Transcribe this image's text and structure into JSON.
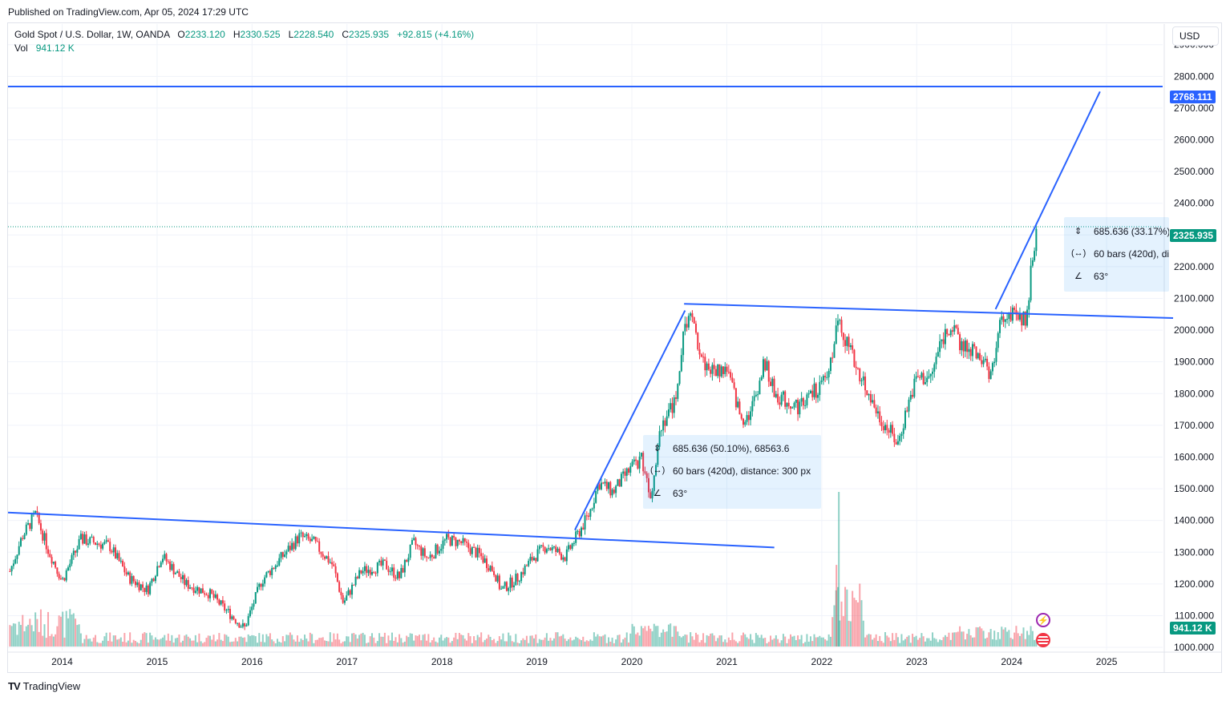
{
  "published": "Published on TradingView.com, Apr 05, 2024 17:29 UTC",
  "legend": {
    "symbol": "Gold Spot / U.S. Dollar, 1W, OANDA",
    "o_label": "O",
    "o_value": "2233.120",
    "h_label": "H",
    "h_value": "2330.525",
    "l_label": "L",
    "l_value": "2228.540",
    "c_label": "C",
    "c_value": "2325.935",
    "change": "+92.815 (+4.16%)",
    "vol_label": "Vol",
    "vol_value": "941.12 K"
  },
  "currency_button": "USD",
  "price_tags": {
    "horizontal_line": "2768.111",
    "last_price": "2325.935",
    "volume": "941.12 K"
  },
  "measure_small": {
    "price_text": "685.636 (50.10%), 68563.6",
    "bars_text": "60 bars (420d), distance: 300 px",
    "angle_text": "63°"
  },
  "measure_large": {
    "price_text": "685.636 (33.17%),",
    "bars_text": "60 bars (420d), di",
    "angle_text": "63°"
  },
  "brand": "TradingView",
  "colors": {
    "up": "#089981",
    "down": "#f23645",
    "trendline": "#2962ff",
    "grid": "#f0f3fa"
  },
  "icons": {
    "event_1": "lightning-icon",
    "event_2": "us-flag-icon"
  },
  "chart_data": {
    "type": "candlestick",
    "title": "Gold Spot / U.S. Dollar, 1W, OANDA",
    "x_ticks": [
      "2014",
      "2015",
      "2016",
      "2017",
      "2018",
      "2019",
      "2020",
      "2021",
      "2022",
      "2023",
      "2024",
      "2025"
    ],
    "y_ticks": [
      "1000.000",
      "1100.000",
      "1200.000",
      "1300.000",
      "1400.000",
      "1500.000",
      "1600.000",
      "1700.000",
      "1800.000",
      "1900.000",
      "2000.000",
      "2100.000",
      "2200.000",
      "2300.000",
      "2400.000",
      "2500.000",
      "2600.000",
      "2700.000",
      "2800.000",
      "2900.000"
    ],
    "ylim": [
      990,
      2965
    ],
    "xlim": [
      2013.43,
      2025.59
    ],
    "price_path": [
      [
        2013.45,
        1240
      ],
      [
        2013.58,
        1350
      ],
      [
        2013.72,
        1420
      ],
      [
        2013.85,
        1310
      ],
      [
        2014.0,
        1210
      ],
      [
        2014.2,
        1340
      ],
      [
        2014.5,
        1320
      ],
      [
        2014.7,
        1220
      ],
      [
        2014.9,
        1180
      ],
      [
        2015.05,
        1290
      ],
      [
        2015.3,
        1200
      ],
      [
        2015.55,
        1170
      ],
      [
        2015.75,
        1110
      ],
      [
        2015.92,
        1060
      ],
      [
        2016.1,
        1210
      ],
      [
        2016.3,
        1280
      ],
      [
        2016.5,
        1350
      ],
      [
        2016.65,
        1330
      ],
      [
        2016.85,
        1260
      ],
      [
        2016.96,
        1140
      ],
      [
        2017.15,
        1240
      ],
      [
        2017.4,
        1260
      ],
      [
        2017.55,
        1220
      ],
      [
        2017.7,
        1330
      ],
      [
        2017.85,
        1280
      ],
      [
        2018.05,
        1340
      ],
      [
        2018.2,
        1330
      ],
      [
        2018.4,
        1290
      ],
      [
        2018.55,
        1240
      ],
      [
        2018.62,
        1180
      ],
      [
        2018.8,
        1220
      ],
      [
        2018.95,
        1280
      ],
      [
        2019.1,
        1320
      ],
      [
        2019.3,
        1285
      ],
      [
        2019.4,
        1340
      ],
      [
        2019.55,
        1420
      ],
      [
        2019.65,
        1520
      ],
      [
        2019.8,
        1490
      ],
      [
        2019.95,
        1550
      ],
      [
        2020.1,
        1600
      ],
      [
        2020.2,
        1480
      ],
      [
        2020.3,
        1700
      ],
      [
        2020.45,
        1770
      ],
      [
        2020.55,
        1990
      ],
      [
        2020.6,
        2060
      ],
      [
        2020.75,
        1900
      ],
      [
        2020.85,
        1870
      ],
      [
        2021.0,
        1880
      ],
      [
        2021.15,
        1720
      ],
      [
        2021.25,
        1740
      ],
      [
        2021.4,
        1900
      ],
      [
        2021.5,
        1800
      ],
      [
        2021.6,
        1780
      ],
      [
        2021.75,
        1760
      ],
      [
        2021.9,
        1800
      ],
      [
        2022.05,
        1840
      ],
      [
        2022.18,
        2040
      ],
      [
        2022.3,
        1930
      ],
      [
        2022.45,
        1830
      ],
      [
        2022.6,
        1730
      ],
      [
        2022.72,
        1680
      ],
      [
        2022.8,
        1640
      ],
      [
        2022.9,
        1760
      ],
      [
        2023.0,
        1850
      ],
      [
        2023.15,
        1850
      ],
      [
        2023.25,
        1960
      ],
      [
        2023.35,
        2020
      ],
      [
        2023.45,
        1960
      ],
      [
        2023.6,
        1930
      ],
      [
        2023.7,
        1910
      ],
      [
        2023.77,
        1830
      ],
      [
        2023.85,
        1990
      ],
      [
        2023.95,
        2060
      ],
      [
        2024.05,
        2030
      ],
      [
        2024.15,
        2040
      ],
      [
        2024.2,
        2170
      ],
      [
        2024.26,
        2326
      ]
    ],
    "trend_lines": [
      {
        "start": [
          2013.43,
          1425
        ],
        "end": [
          2021.5,
          1315
        ]
      },
      {
        "start": [
          2020.55,
          2083
        ],
        "end": [
          2025.7,
          2038
        ]
      },
      {
        "start": [
          2019.4,
          1370
        ],
        "end": [
          2020.56,
          2062
        ]
      },
      {
        "start": [
          2023.83,
          2066
        ],
        "end": [
          2024.93,
          2752
        ]
      }
    ],
    "horizontal_line": 2768.111,
    "last_price": 2325.935,
    "volume_spikes": [
      [
        2022.18,
        "max"
      ]
    ],
    "grid": true,
    "legend_position": "top-left"
  }
}
